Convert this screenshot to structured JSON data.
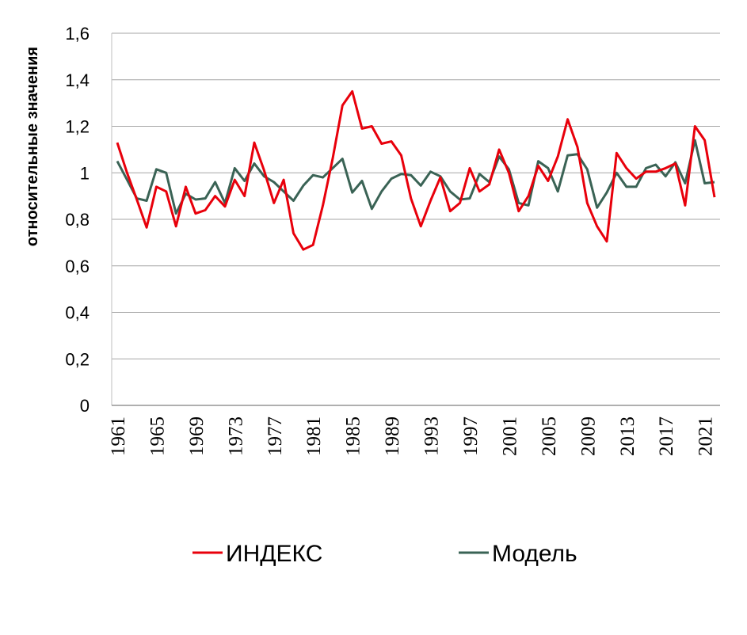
{
  "chart_data": {
    "type": "line",
    "title": "",
    "xlabel": "",
    "ylabel": "относительные значения",
    "ylim": [
      0,
      1.6
    ],
    "yticks": [
      "0",
      "0,2",
      "0,4",
      "0,6",
      "0,8",
      "1",
      "1,2",
      "1,4",
      "1,6"
    ],
    "xtick_labels": [
      "1961",
      "1965",
      "1969",
      "1973",
      "1977",
      "1981",
      "1985",
      "1989",
      "1993",
      "1997",
      "2001",
      "2005",
      "2009",
      "2013",
      "2017",
      "2021"
    ],
    "grid": true,
    "legend_position": "bottom",
    "x": [
      1961,
      1962,
      1963,
      1964,
      1965,
      1966,
      1967,
      1968,
      1969,
      1970,
      1971,
      1972,
      1973,
      1974,
      1975,
      1976,
      1977,
      1978,
      1979,
      1980,
      1981,
      1982,
      1983,
      1984,
      1985,
      1986,
      1987,
      1988,
      1989,
      1990,
      1991,
      1992,
      1993,
      1994,
      1995,
      1996,
      1997,
      1998,
      1999,
      2000,
      2001,
      2002,
      2003,
      2004,
      2005,
      2006,
      2007,
      2008,
      2009,
      2010,
      2011,
      2012,
      2013,
      2014,
      2015,
      2016,
      2017,
      2018,
      2019,
      2020,
      2021,
      2022
    ],
    "series": [
      {
        "name": "ИНДЕКС",
        "color": "#e8000b",
        "values": [
          1.13,
          1.0,
          0.885,
          0.765,
          0.94,
          0.92,
          0.77,
          0.94,
          0.825,
          0.84,
          0.9,
          0.855,
          0.97,
          0.9,
          1.13,
          1.01,
          0.87,
          0.97,
          0.74,
          0.67,
          0.69,
          0.86,
          1.06,
          1.29,
          1.35,
          1.19,
          1.2,
          1.125,
          1.135,
          1.075,
          0.89,
          0.77,
          0.88,
          0.98,
          0.835,
          0.87,
          1.02,
          0.92,
          0.95,
          1.1,
          1.0,
          0.835,
          0.9,
          1.03,
          0.965,
          1.07,
          1.23,
          1.11,
          0.87,
          0.77,
          0.705,
          1.085,
          1.02,
          0.975,
          1.005,
          1.005,
          1.02,
          1.04,
          0.86,
          1.2,
          1.14,
          0.895
        ]
      },
      {
        "name": "Модель",
        "color": "#3a6355",
        "values": [
          1.05,
          0.97,
          0.89,
          0.88,
          1.015,
          1.0,
          0.825,
          0.91,
          0.885,
          0.89,
          0.96,
          0.87,
          1.02,
          0.965,
          1.04,
          0.985,
          0.96,
          0.92,
          0.88,
          0.945,
          0.99,
          0.98,
          1.02,
          1.06,
          0.915,
          0.965,
          0.845,
          0.92,
          0.975,
          0.995,
          0.99,
          0.945,
          1.005,
          0.985,
          0.92,
          0.885,
          0.89,
          0.995,
          0.96,
          1.07,
          1.015,
          0.87,
          0.86,
          1.05,
          1.02,
          0.92,
          1.075,
          1.08,
          1.015,
          0.85,
          0.915,
          1.0,
          0.94,
          0.94,
          1.02,
          1.035,
          0.985,
          1.045,
          0.955,
          1.14,
          0.955,
          0.96
        ]
      }
    ]
  }
}
